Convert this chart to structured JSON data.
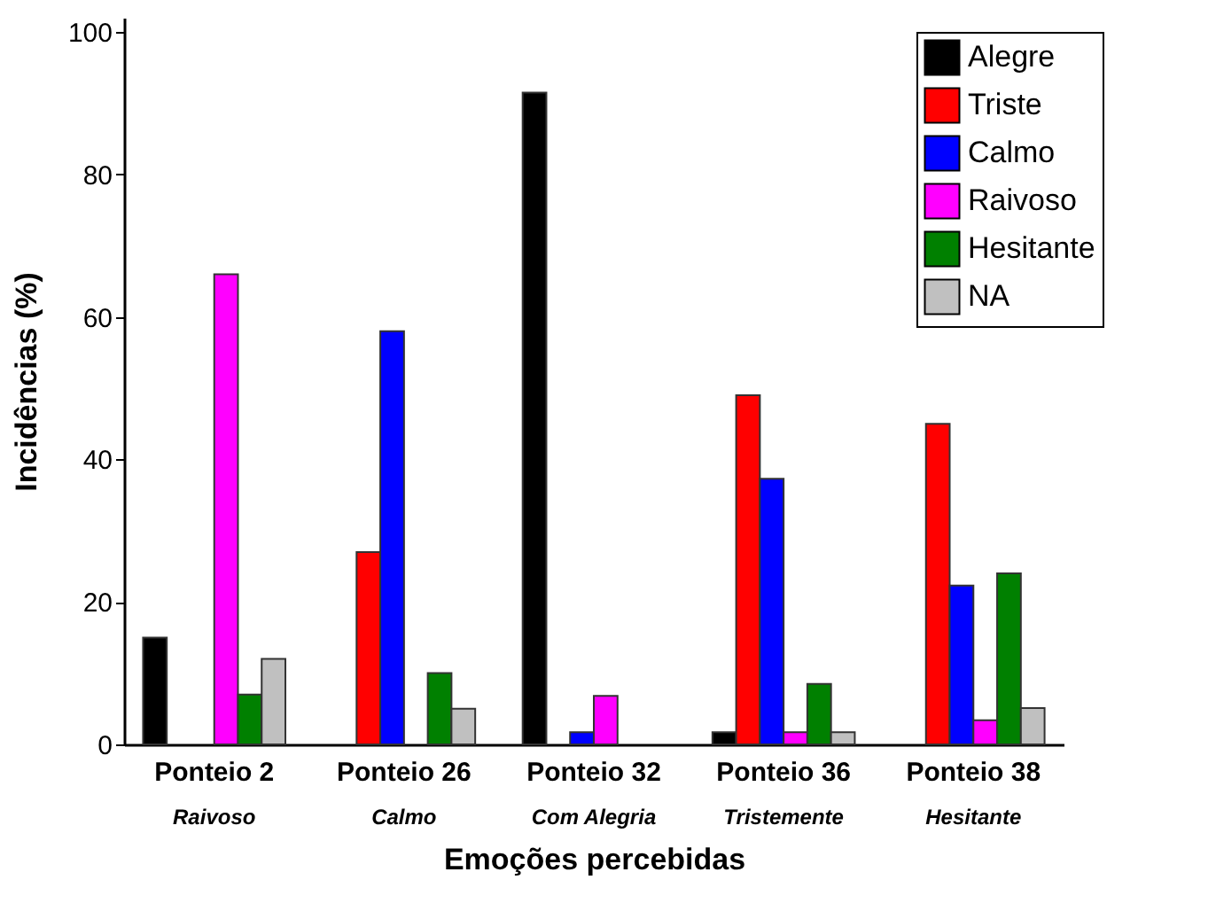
{
  "chart_data": {
    "type": "bar",
    "xlabel": "Emoções percebidas",
    "ylabel": "Incidências (%)",
    "categories": [
      "Ponteio 2\nRaivoso",
      "Ponteio 26\nCalmo",
      "Ponteio 32\nCom Alegria",
      "Ponteio 36\nTristemente",
      "Ponteio 38\nHesitante"
    ],
    "series": [
      {
        "name": "Alegre",
        "color": "#000000",
        "values": [
          15,
          0,
          91.5,
          1.7,
          0
        ]
      },
      {
        "name": "Triste",
        "color": "#ff0000",
        "values": [
          0,
          27,
          0,
          49,
          45
        ]
      },
      {
        "name": "Calmo",
        "color": "#0000ff",
        "values": [
          0,
          58,
          1.7,
          37.3,
          22.3
        ]
      },
      {
        "name": "Raivoso",
        "color": "#ff00ff",
        "values": [
          66,
          0,
          6.8,
          1.7,
          3.4
        ]
      },
      {
        "name": "Hesitante",
        "color": "#008000",
        "values": [
          7,
          10,
          0,
          8.5,
          24
        ]
      },
      {
        "name": "NA",
        "color": "#c0c0c0",
        "values": [
          12,
          5,
          0,
          1.7,
          5.1
        ]
      }
    ],
    "ylim": [
      0,
      102
    ],
    "yticks": [
      0,
      20,
      40,
      60,
      80,
      100
    ],
    "grid": false,
    "legend": "top right"
  }
}
